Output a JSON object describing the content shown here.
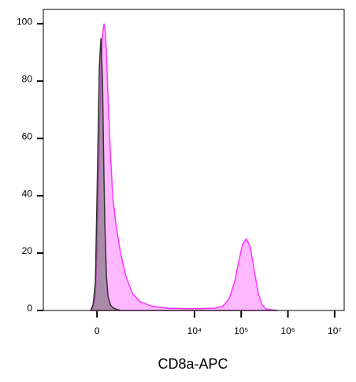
{
  "chart_data": {
    "type": "area",
    "xlabel": "CD8a-APC",
    "x": [
      -52,
      -32,
      -13,
      0,
      19,
      32,
      45,
      58,
      65,
      79,
      93,
      116,
      140,
      176,
      237,
      321,
      454,
      682,
      1230,
      2681,
      8577,
      27400,
      40400,
      55100,
      72300,
      88200,
      106800,
      129000,
      157000,
      190000,
      232000,
      280000,
      340000,
      607000
    ],
    "series": [
      {
        "color": "#ff33ff",
        "fill": "#ffb0ff",
        "values": [
          0,
          1,
          5,
          20,
          60,
          85,
          96,
          100,
          99,
          90,
          75,
          55,
          40,
          30,
          20,
          12,
          6,
          3,
          1.5,
          0.8,
          0.6,
          0.8,
          1.5,
          4,
          10,
          17,
          23,
          25,
          22,
          14,
          6,
          2,
          0.5,
          0
        ]
      },
      {
        "color": "#333333",
        "fill": "#666666",
        "values": [
          0,
          2,
          10,
          40,
          85,
          95,
          80,
          45,
          30,
          12,
          5,
          2,
          1,
          0.5,
          0,
          0,
          0,
          0,
          0,
          0,
          0,
          0,
          0,
          0,
          0,
          0,
          0,
          0,
          0,
          0,
          0,
          0,
          0,
          0
        ]
      }
    ],
    "xlim": [
      -1150,
      16000000
    ],
    "xticks": [
      0,
      {
        "value": 10000,
        "label": "10⁴"
      },
      {
        "value": 100000,
        "label": "10⁵"
      },
      {
        "value": 1000000,
        "label": "10⁶"
      },
      {
        "value": 10000000,
        "label": "10⁷"
      }
    ],
    "ylim": [
      0,
      105
    ],
    "yticks": [
      0,
      20,
      40,
      60,
      80,
      100
    ]
  }
}
